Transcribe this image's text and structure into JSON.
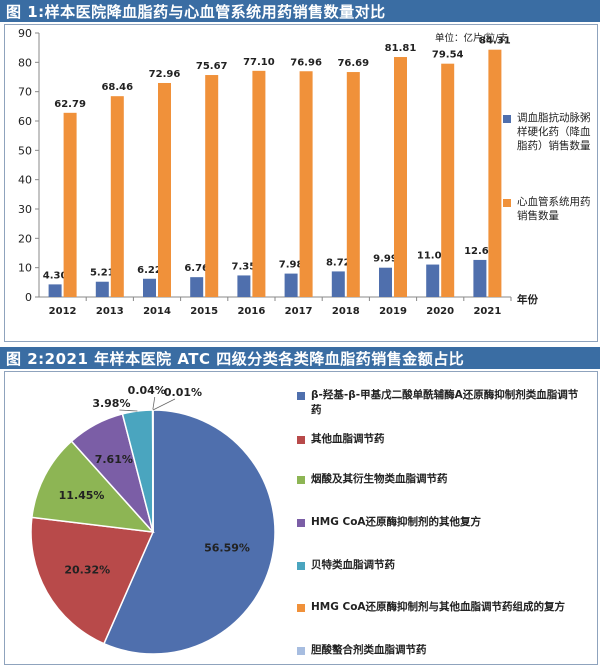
{
  "chart_data": [
    {
      "type": "bar",
      "title": "图 1:样本医院降血脂药与心血管系统用药销售数量对比",
      "unit_note": "单位：亿片/粒/支",
      "xlabel": "年份",
      "categories": [
        "2012",
        "2013",
        "2014",
        "2015",
        "2016",
        "2017",
        "2018",
        "2019",
        "2020",
        "2021"
      ],
      "ylim": [
        0,
        90
      ],
      "yticks": [
        0,
        10,
        20,
        30,
        40,
        50,
        60,
        70,
        80,
        90
      ],
      "legend_position": "right",
      "series": [
        {
          "name": "调血脂抗动脉粥样硬化药（降血脂药）销售数量",
          "color": "#4f6fad",
          "values": [
            4.3,
            5.21,
            6.22,
            6.76,
            7.35,
            7.98,
            8.72,
            9.99,
            11.06,
            12.64
          ],
          "labels": [
            "4.30",
            "5.21",
            "6.22",
            "6.76",
            "7.35",
            "7.98",
            "8.72",
            "9.99",
            "11.06",
            "12.64"
          ]
        },
        {
          "name": "心血管系统用药销售数量",
          "color": "#f0913a",
          "values": [
            62.79,
            68.46,
            72.96,
            75.67,
            77.1,
            76.96,
            76.69,
            81.81,
            79.54,
            84.31
          ],
          "labels": [
            "62.79",
            "68.46",
            "72.96",
            "75.67",
            "77.10",
            "76.96",
            "76.69",
            "81.81",
            "79.54",
            "84.31"
          ]
        }
      ]
    },
    {
      "type": "pie",
      "title": "图 2:2021 年样本医院 ATC 四级分类各类降血脂药销售金额占比",
      "legend_position": "right",
      "slices": [
        {
          "name": "β-羟基-β-甲基戊二酸单酰辅酶A还原酶抑制剂类血脂调节药",
          "value": 56.59,
          "label": "56.59%",
          "color": "#4f6fad"
        },
        {
          "name": "其他血脂调节药",
          "value": 20.32,
          "label": "20.32%",
          "color": "#b84a4a"
        },
        {
          "name": "烟酸及其衍生物类血脂调节药",
          "value": 11.45,
          "label": "11.45%",
          "color": "#8db554"
        },
        {
          "name": "HMG CoA还原酶抑制剂的其他复方",
          "value": 7.61,
          "label": "7.61%",
          "color": "#7b5ea6"
        },
        {
          "name": "贝特类血脂调节药",
          "value": 3.98,
          "label": "3.98%",
          "color": "#4aa5bf"
        },
        {
          "name": "HMG CoA还原酶抑制剂与其他血脂调节药组成的复方",
          "value": 0.04,
          "label": "0.04%",
          "color": "#f0913a"
        },
        {
          "name": "胆酸螯合剂类血脂调节药",
          "value": 0.01,
          "label": "0.01%",
          "color": "#a7bde0"
        }
      ]
    }
  ]
}
